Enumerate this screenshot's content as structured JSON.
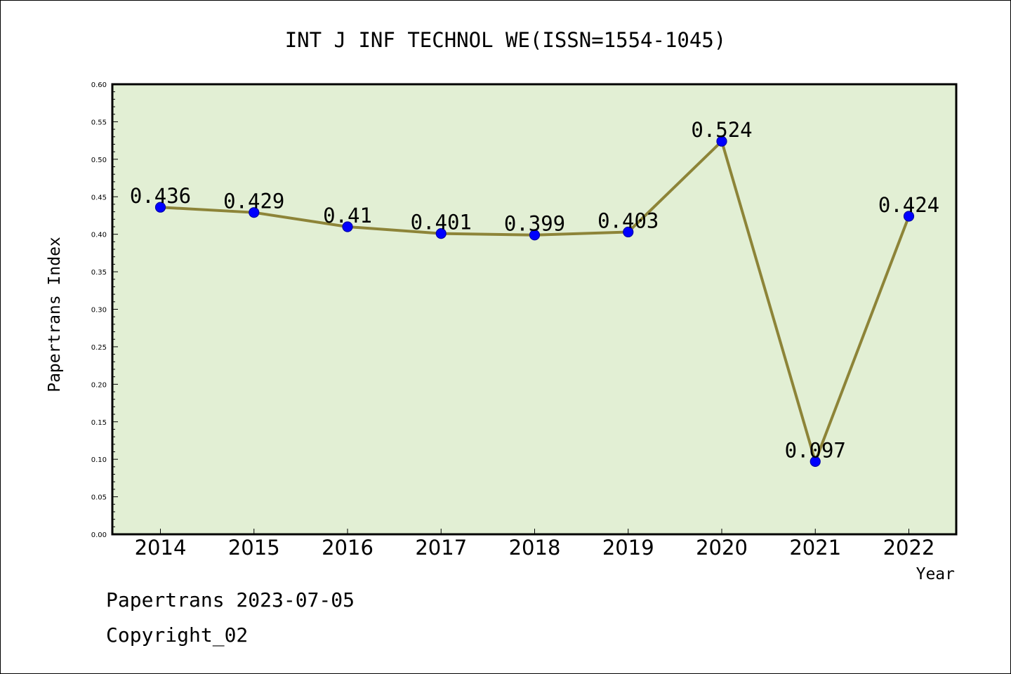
{
  "chart_data": {
    "type": "line",
    "title": "INT J INF TECHNOL WE(ISSN=1554-1045)",
    "xlabel": "Year",
    "ylabel": "Papertrans Index",
    "categories": [
      "2014",
      "2015",
      "2016",
      "2017",
      "2018",
      "2019",
      "2020",
      "2021",
      "2022"
    ],
    "values": [
      0.436,
      0.429,
      0.41,
      0.401,
      0.399,
      0.403,
      0.524,
      0.097,
      0.424
    ],
    "data_labels": [
      "0.436",
      "0.429",
      "0.41",
      "0.401",
      "0.399",
      "0.403",
      "0.524",
      "0.097",
      "0.424"
    ],
    "ylim": [
      0,
      0.6
    ],
    "yticks": [
      "0.00",
      "0.05",
      "0.10",
      "0.15",
      "0.20",
      "0.25",
      "0.30",
      "0.35",
      "0.40",
      "0.45",
      "0.50",
      "0.55",
      "0.60"
    ],
    "grid": false,
    "legend": "none"
  },
  "colors": {
    "plot_background": "#e2efd4",
    "line": "#8d8438",
    "marker": "#0000ff",
    "marker_edge": "#0000aa"
  },
  "footer": {
    "line1": "Papertrans 2023-07-05",
    "line2": "Copyright_02"
  }
}
